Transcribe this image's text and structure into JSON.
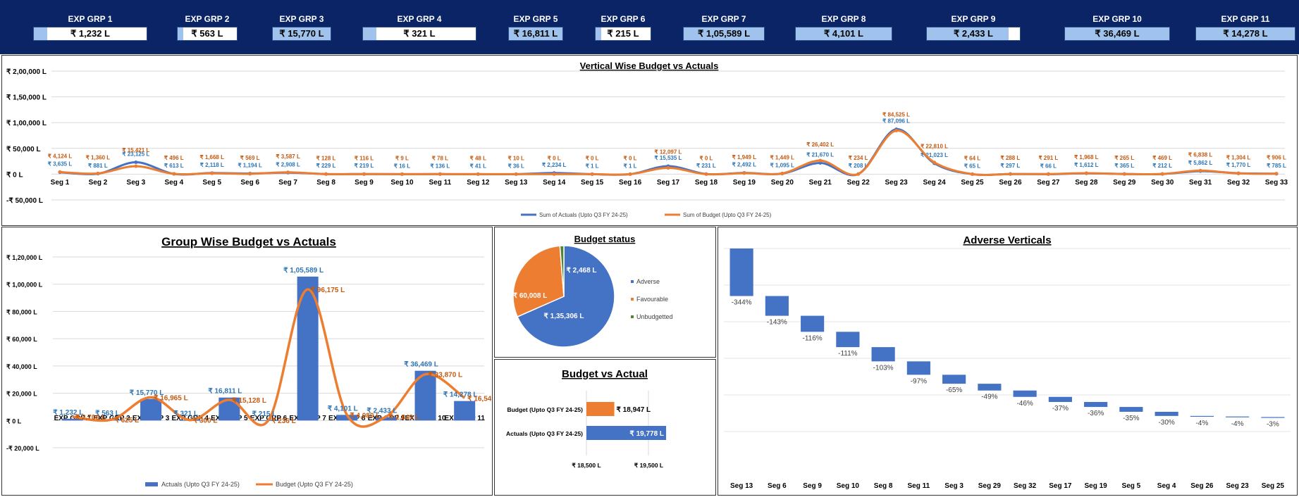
{
  "kpi_groups": [
    {
      "label": "EXP GRP 1",
      "value": "₹ 1,232 L",
      "fill": 0.12
    },
    {
      "label": "EXP GRP 2",
      "value": "₹ 563 L",
      "fill": 0.1
    },
    {
      "label": "EXP GRP 3",
      "value": "₹ 15,770 L",
      "fill": 1
    },
    {
      "label": "EXP GRP 4",
      "value": "₹ 321 L",
      "fill": 0.12
    },
    {
      "label": "EXP GRP 5",
      "value": "₹ 16,811 L",
      "fill": 1
    },
    {
      "label": "EXP GRP 6",
      "value": "₹ 215 L",
      "fill": 0.1
    },
    {
      "label": "EXP GRP 7",
      "value": "₹ 1,05,589 L",
      "fill": 1
    },
    {
      "label": "EXP GRP 8",
      "value": "₹ 4,101 L",
      "fill": 1
    },
    {
      "label": "EXP GRP 9",
      "value": "₹ 2,433 L",
      "fill": 0.88
    },
    {
      "label": "EXP GRP 10",
      "value": "₹ 36,469 L",
      "fill": 1
    },
    {
      "label": "EXP GRP 11",
      "value": "₹ 14,278 L",
      "fill": 1
    }
  ],
  "chart_data": [
    {
      "id": "vertical",
      "type": "line",
      "title": "Vertical Wise Budget vs Actuals ",
      "categories": [
        "Seg 1",
        "Seg 2",
        "Seg 3",
        "Seg 4",
        "Seg 5",
        "Seg 6",
        "Seg 7",
        "Seg 8",
        "Seg 9",
        "Seg 10",
        "Seg 11",
        "Seg 12",
        "Seg 13",
        "Seg 14",
        "Seg 15",
        "Seg 16",
        "Seg 17",
        "Seg 18",
        "Seg 19",
        "Seg 20",
        "Seg 21",
        "Seg 22",
        "Seg 23",
        "Seg 24",
        "Seg 25",
        "Seg 26",
        "Seg 27",
        "Seg 28",
        "Seg 29",
        "Seg 30",
        "Seg 31",
        "Seg 32",
        "Seg 33"
      ],
      "ylim": [
        -50000,
        200000
      ],
      "yticks": [
        -50000,
        0,
        50000,
        100000,
        150000,
        200000
      ],
      "yticklabels": [
        "-₹ 50,000 L",
        "₹ 0 L",
        "₹ 50,000 L",
        "₹ 1,00,000 L",
        "₹ 1,50,000 L",
        "₹ 2,00,000 L"
      ],
      "series": [
        {
          "name": "Sum of Actuals (Upto Q3 FY 24-25)",
          "color": "#4472c4",
          "labelColor": "#2e75b6",
          "values": [
            3635,
            881,
            23125,
            613,
            2118,
            1194,
            2908,
            229,
            219,
            16,
            136,
            41,
            36,
            2234,
            1,
            1,
            15535,
            231,
            2492,
            1095,
            21670,
            208,
            87096,
            21023,
            65,
            297,
            66,
            1612,
            365,
            212,
            5862,
            1770,
            785
          ],
          "labels": [
            "₹ 3,635 L",
            "₹ 881 L",
            "₹ 23,125 L",
            "₹ 613 L",
            "₹ 2,118 L",
            "₹ 1,194 L",
            "₹ 2,908 L",
            "₹ 229 L",
            "₹ 219 L",
            "₹ 16 L",
            "₹ 136 L",
            "₹ 41 L",
            "₹ 36 L",
            "₹ 2,234 L",
            "₹ 1 L",
            "₹ 1 L",
            "₹ 15,535 L",
            "₹ 231 L",
            "₹ 2,492 L",
            "₹ 1,095 L",
            "₹ 21,670 L",
            "₹ 208 L",
            "₹ 87,096 L",
            "₹ 21,023 L",
            "₹ 65 L",
            "₹ 297 L",
            "₹ 66 L",
            "₹ 1,612 L",
            "₹ 365 L",
            "₹ 212 L",
            "₹ 5,862 L",
            "₹ 1,770 L",
            "₹ 785 L"
          ]
        },
        {
          "name": "Sum of Budget (Upto Q3 FY 24-25)",
          "color": "#ed7d31",
          "labelColor": "#c55a11",
          "values": [
            4124,
            1360,
            15421,
            496,
            1668,
            569,
            3587,
            128,
            116,
            9,
            78,
            48,
            10,
            0,
            0,
            0,
            12097,
            0,
            1949,
            1449,
            26402,
            234,
            84525,
            22810,
            64,
            288,
            291,
            1968,
            265,
            469,
            6838,
            1304,
            906
          ],
          "labels": [
            "₹ 4,124 L",
            "₹ 1,360 L",
            "₹ 15,421 L",
            "₹ 496 L",
            "₹ 1,668 L",
            "₹ 569 L",
            "₹ 3,587 L",
            "₹ 128 L",
            "₹ 116 L",
            "₹ 9 L",
            "₹ 78 L",
            "₹ 48 L",
            "₹ 10 L",
            "₹ 0 L",
            "₹ 0 L",
            "₹ 0 L",
            "₹ 12,097 L",
            "₹ 0 L",
            "₹ 1,949 L",
            "₹ 1,449 L",
            "₹ 26,402 L",
            "₹ 234 L",
            "₹ 84,525 L",
            "₹ 22,810 L",
            "₹ 64 L",
            "₹ 288 L",
            "₹ 291 L",
            "₹ 1,968 L",
            "₹ 265 L",
            "₹ 469 L",
            "₹ 6,838 L",
            "₹ 1,304 L",
            "₹ 906 L"
          ]
        }
      ]
    },
    {
      "id": "group",
      "type": "bar",
      "title": "Group Wise Budget vs Actuals",
      "categories": [
        "EXP GRP 1",
        "EXP GRP 2",
        "EXP GRP 3",
        "EXP GRP 4",
        "EXP GRP 5",
        "EXP GRP 6",
        "EXP GRP 7",
        "EXP GRP 8",
        "EXP GRP 9",
        "EXP GRP 10",
        "EXP GRP 11"
      ],
      "ylim": [
        -20000,
        120000
      ],
      "yticks": [
        -20000,
        0,
        20000,
        40000,
        60000,
        80000,
        100000,
        120000
      ],
      "yticklabels": [
        "-₹ 20,000 L",
        "₹ 0 L",
        "₹ 20,000 L",
        "₹ 40,000 L",
        "₹ 60,000 L",
        "₹ 80,000 L",
        "₹ 1,00,000 L",
        "₹ 1,20,000 L"
      ],
      "series": [
        {
          "name": "Actuals (Upto Q3 FY 24-25)",
          "kind": "bar",
          "color": "#4472c4",
          "labelColor": "#2e75b6",
          "values": [
            1232,
            563,
            15770,
            321,
            16811,
            215,
            105589,
            4101,
            2433,
            36469,
            14278
          ],
          "labels": [
            "₹ 1,232 L",
            "₹ 563 L",
            "₹ 15,770 L",
            "₹ 321 L",
            "₹ 16,811 L",
            "₹ 215 L",
            "₹ 1,05,589 L",
            "₹ 4,101 L",
            "₹ 2,433 L",
            "₹ 36,469 L",
            "₹ 14,278 L"
          ]
        },
        {
          "name": "Budget (Upto Q3 FY 24-25)",
          "kind": "line",
          "color": "#ed7d31",
          "labelColor": "#c55a11",
          "values": [
            2706,
            625,
            16965,
            300,
            15128,
            236,
            96175,
            4080,
            2849,
            33870,
            16543
          ],
          "labels": [
            "₹ 2,706 L",
            "₹ 625 L",
            "₹ 16,965 L",
            "₹ 300 L",
            "₹ 15,128 L",
            "₹ 236 L",
            "₹ 96,175 L",
            "₹ 4,080 L",
            "₹ 2,849 L",
            "₹ 33,870 L",
            "₹ 16,543 L"
          ]
        }
      ]
    },
    {
      "id": "status",
      "type": "pie",
      "title": "Budget status",
      "slices": [
        {
          "name": "Adverse",
          "value": 135306,
          "label": "₹ 1,35,306 L",
          "color": "#4472c4"
        },
        {
          "name": "Favourable",
          "value": 60008,
          "label": "₹ 60,008 L",
          "color": "#ed7d31"
        },
        {
          "name": "Unbudgetted",
          "value": 2468,
          "label": "₹ 2,468 L",
          "color": "#548235"
        }
      ]
    },
    {
      "id": "bva",
      "type": "bar",
      "orientation": "horizontal",
      "title": "Budget vs Actual",
      "categories": [
        "Budget (Upto Q3 FY 24-25)",
        "Actuals (Upto Q3 FY 24-25)"
      ],
      "values": [
        18947,
        19778
      ],
      "labels": [
        "₹ 18,947 L",
        "₹ 19,778 L"
      ],
      "colors": [
        "#ed7d31",
        "#4472c4"
      ],
      "xlim": [
        18500,
        19800
      ],
      "xticks": [
        18500,
        19500
      ],
      "xticklabels": [
        "₹ 18,500 L",
        "₹ 19,500 L"
      ]
    },
    {
      "id": "adverse",
      "type": "bar",
      "title": "Adverse Verticals",
      "categories": [
        "Seg 13",
        "Seg 6",
        "Seg 9",
        "Seg 10",
        "Seg 8",
        "Seg 11",
        "Seg 3",
        "Seg 29",
        "Seg 32",
        "Seg 17",
        "Seg 19",
        "Seg 5",
        "Seg 4",
        "Seg 26",
        "Seg 23",
        "Seg 25"
      ],
      "values": [
        -344,
        -143,
        -116,
        -111,
        -103,
        -97,
        -65,
        -49,
        -46,
        -37,
        -36,
        -35,
        -30,
        -4,
        -4,
        -3
      ],
      "labels": [
        "-344%",
        "-143%",
        "-116%",
        "-111%",
        "-103%",
        "-97%",
        "-65%",
        "-49%",
        "-46%",
        "-37%",
        "-36%",
        "-35%",
        "-30%",
        "-4%",
        "-4%",
        "-3%"
      ],
      "color": "#4472c4"
    }
  ]
}
